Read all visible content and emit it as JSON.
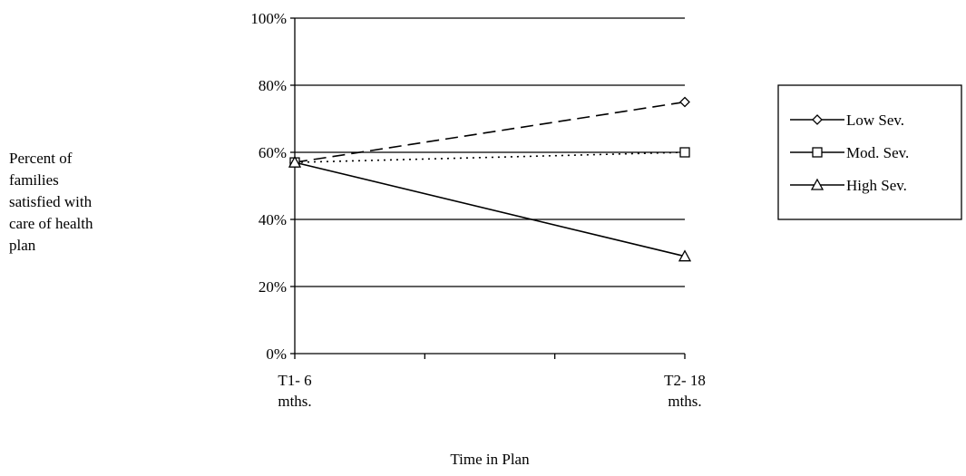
{
  "chart_data": {
    "type": "line",
    "title": "",
    "xlabel": "Time in Plan",
    "ylabel": "Percent of families satisfied with care of health plan",
    "ylabel_lines": [
      "Percent of",
      "families",
      "satisfied with",
      "care of health",
      "plan"
    ],
    "categories": [
      "T1- 6 mths.",
      "T2- 18 mths."
    ],
    "category_lines": [
      [
        "T1- 6",
        "mths."
      ],
      [
        "T2- 18",
        "mths."
      ]
    ],
    "ylim": [
      0,
      100
    ],
    "yticks": [
      "0%",
      "20%",
      "40%",
      "60%",
      "80%",
      "100%"
    ],
    "grid": true,
    "legend_position": "right",
    "series": [
      {
        "name": "Low Sev.",
        "values": [
          57,
          75
        ],
        "line_style": "dashed",
        "marker": "diamond"
      },
      {
        "name": "Mod. Sev.",
        "values": [
          57,
          60
        ],
        "line_style": "dotted",
        "marker": "square"
      },
      {
        "name": "High Sev.",
        "values": [
          57,
          29
        ],
        "line_style": "solid",
        "marker": "triangle"
      }
    ]
  }
}
